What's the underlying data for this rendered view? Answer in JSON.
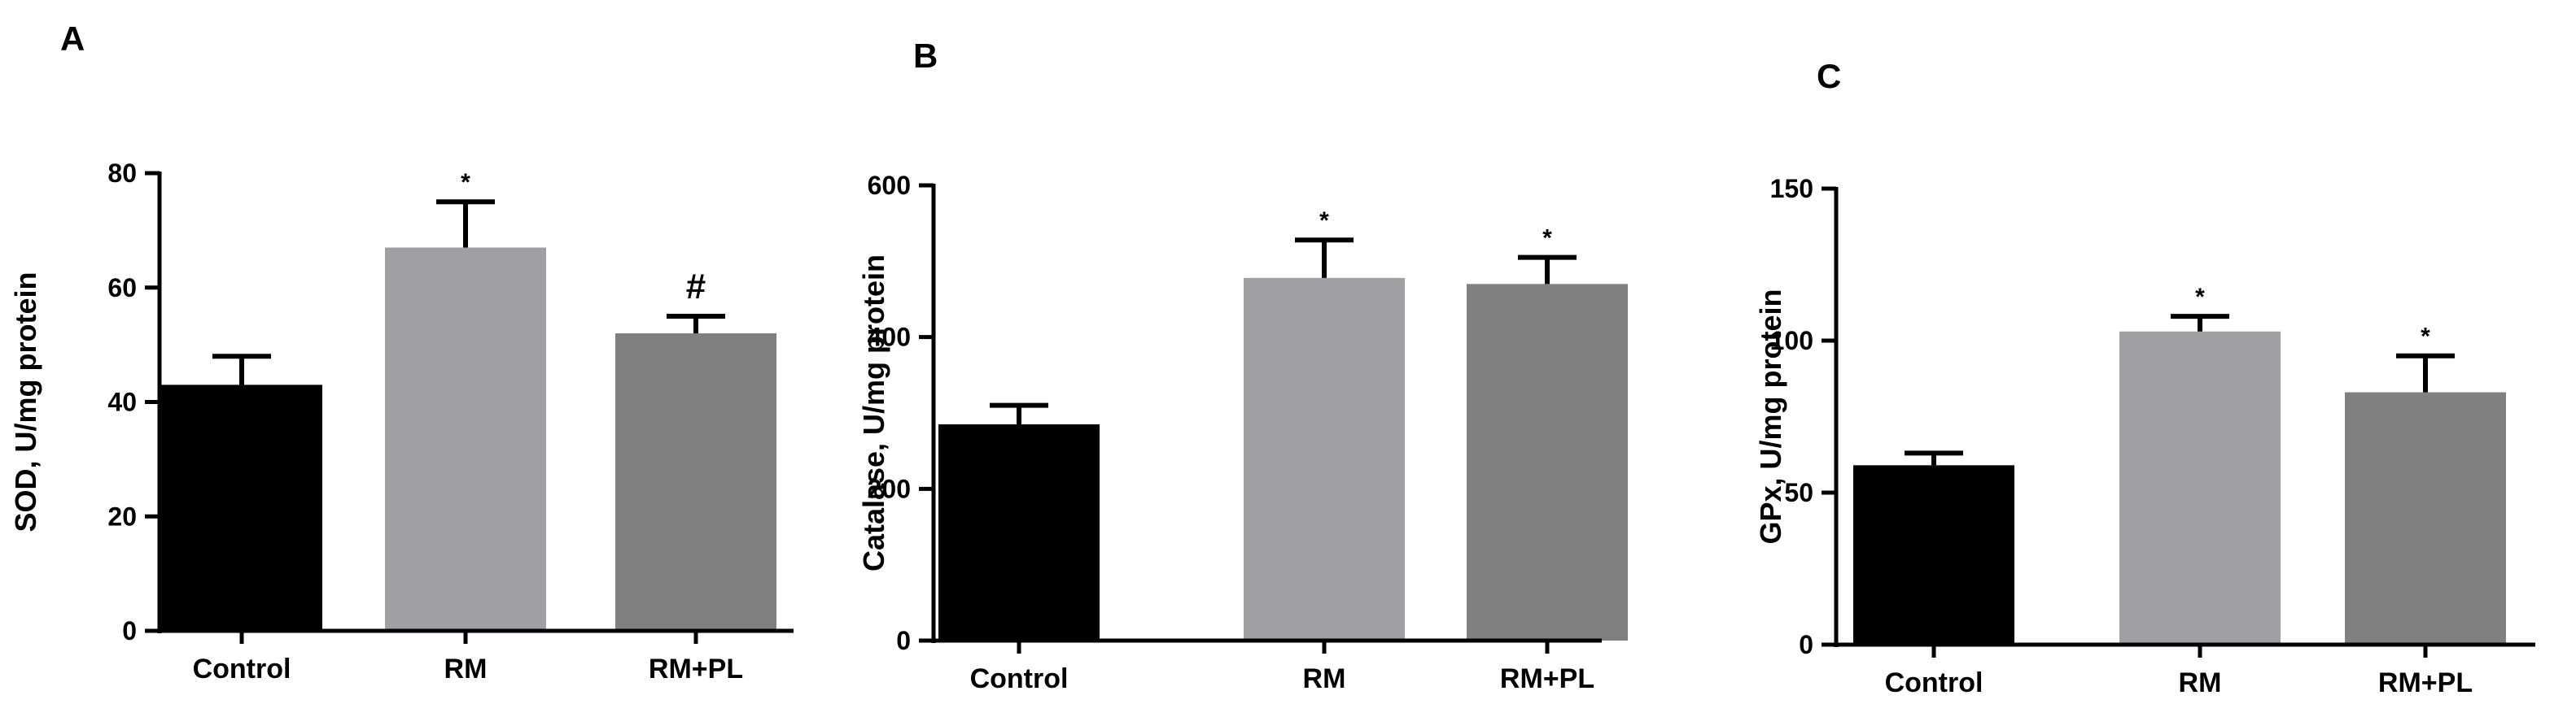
{
  "chart_data": [
    {
      "type": "bar",
      "panel_label": "A",
      "ylabel": "SOD, U/mg protein",
      "categories": [
        "Control",
        "RM",
        "RM+PL"
      ],
      "values": [
        43,
        67,
        52
      ],
      "errors": [
        5,
        8,
        3
      ],
      "annotations": [
        "",
        "*",
        "#"
      ],
      "colors": [
        "#000000",
        "#a0a0a4",
        "#808080"
      ],
      "ylim": [
        0,
        80
      ],
      "yticks": [
        0,
        20,
        40,
        60,
        80
      ],
      "grid": false
    },
    {
      "type": "bar",
      "panel_label": "B",
      "ylabel": "Catalase, U/mg protein",
      "categories": [
        "Control",
        "RM",
        "RM+PL"
      ],
      "values": [
        285,
        478,
        470
      ],
      "errors": [
        25,
        50,
        35
      ],
      "annotations": [
        "",
        "*",
        "*"
      ],
      "colors": [
        "#000000",
        "#a0a0a4",
        "#808080"
      ],
      "ylim": [
        0,
        600
      ],
      "yticks": [
        0,
        200,
        400,
        600
      ],
      "grid": false
    },
    {
      "type": "bar",
      "panel_label": "C",
      "ylabel": "GPx, U/mg protein",
      "categories": [
        "Control",
        "RM",
        "RM+PL"
      ],
      "values": [
        59,
        103,
        83
      ],
      "errors": [
        4,
        5,
        12
      ],
      "annotations": [
        "",
        "*",
        "*"
      ],
      "colors": [
        "#000000",
        "#a0a0a4",
        "#808080"
      ],
      "ylim": [
        0,
        150
      ],
      "yticks": [
        0,
        50,
        100,
        150
      ],
      "grid": false
    }
  ]
}
